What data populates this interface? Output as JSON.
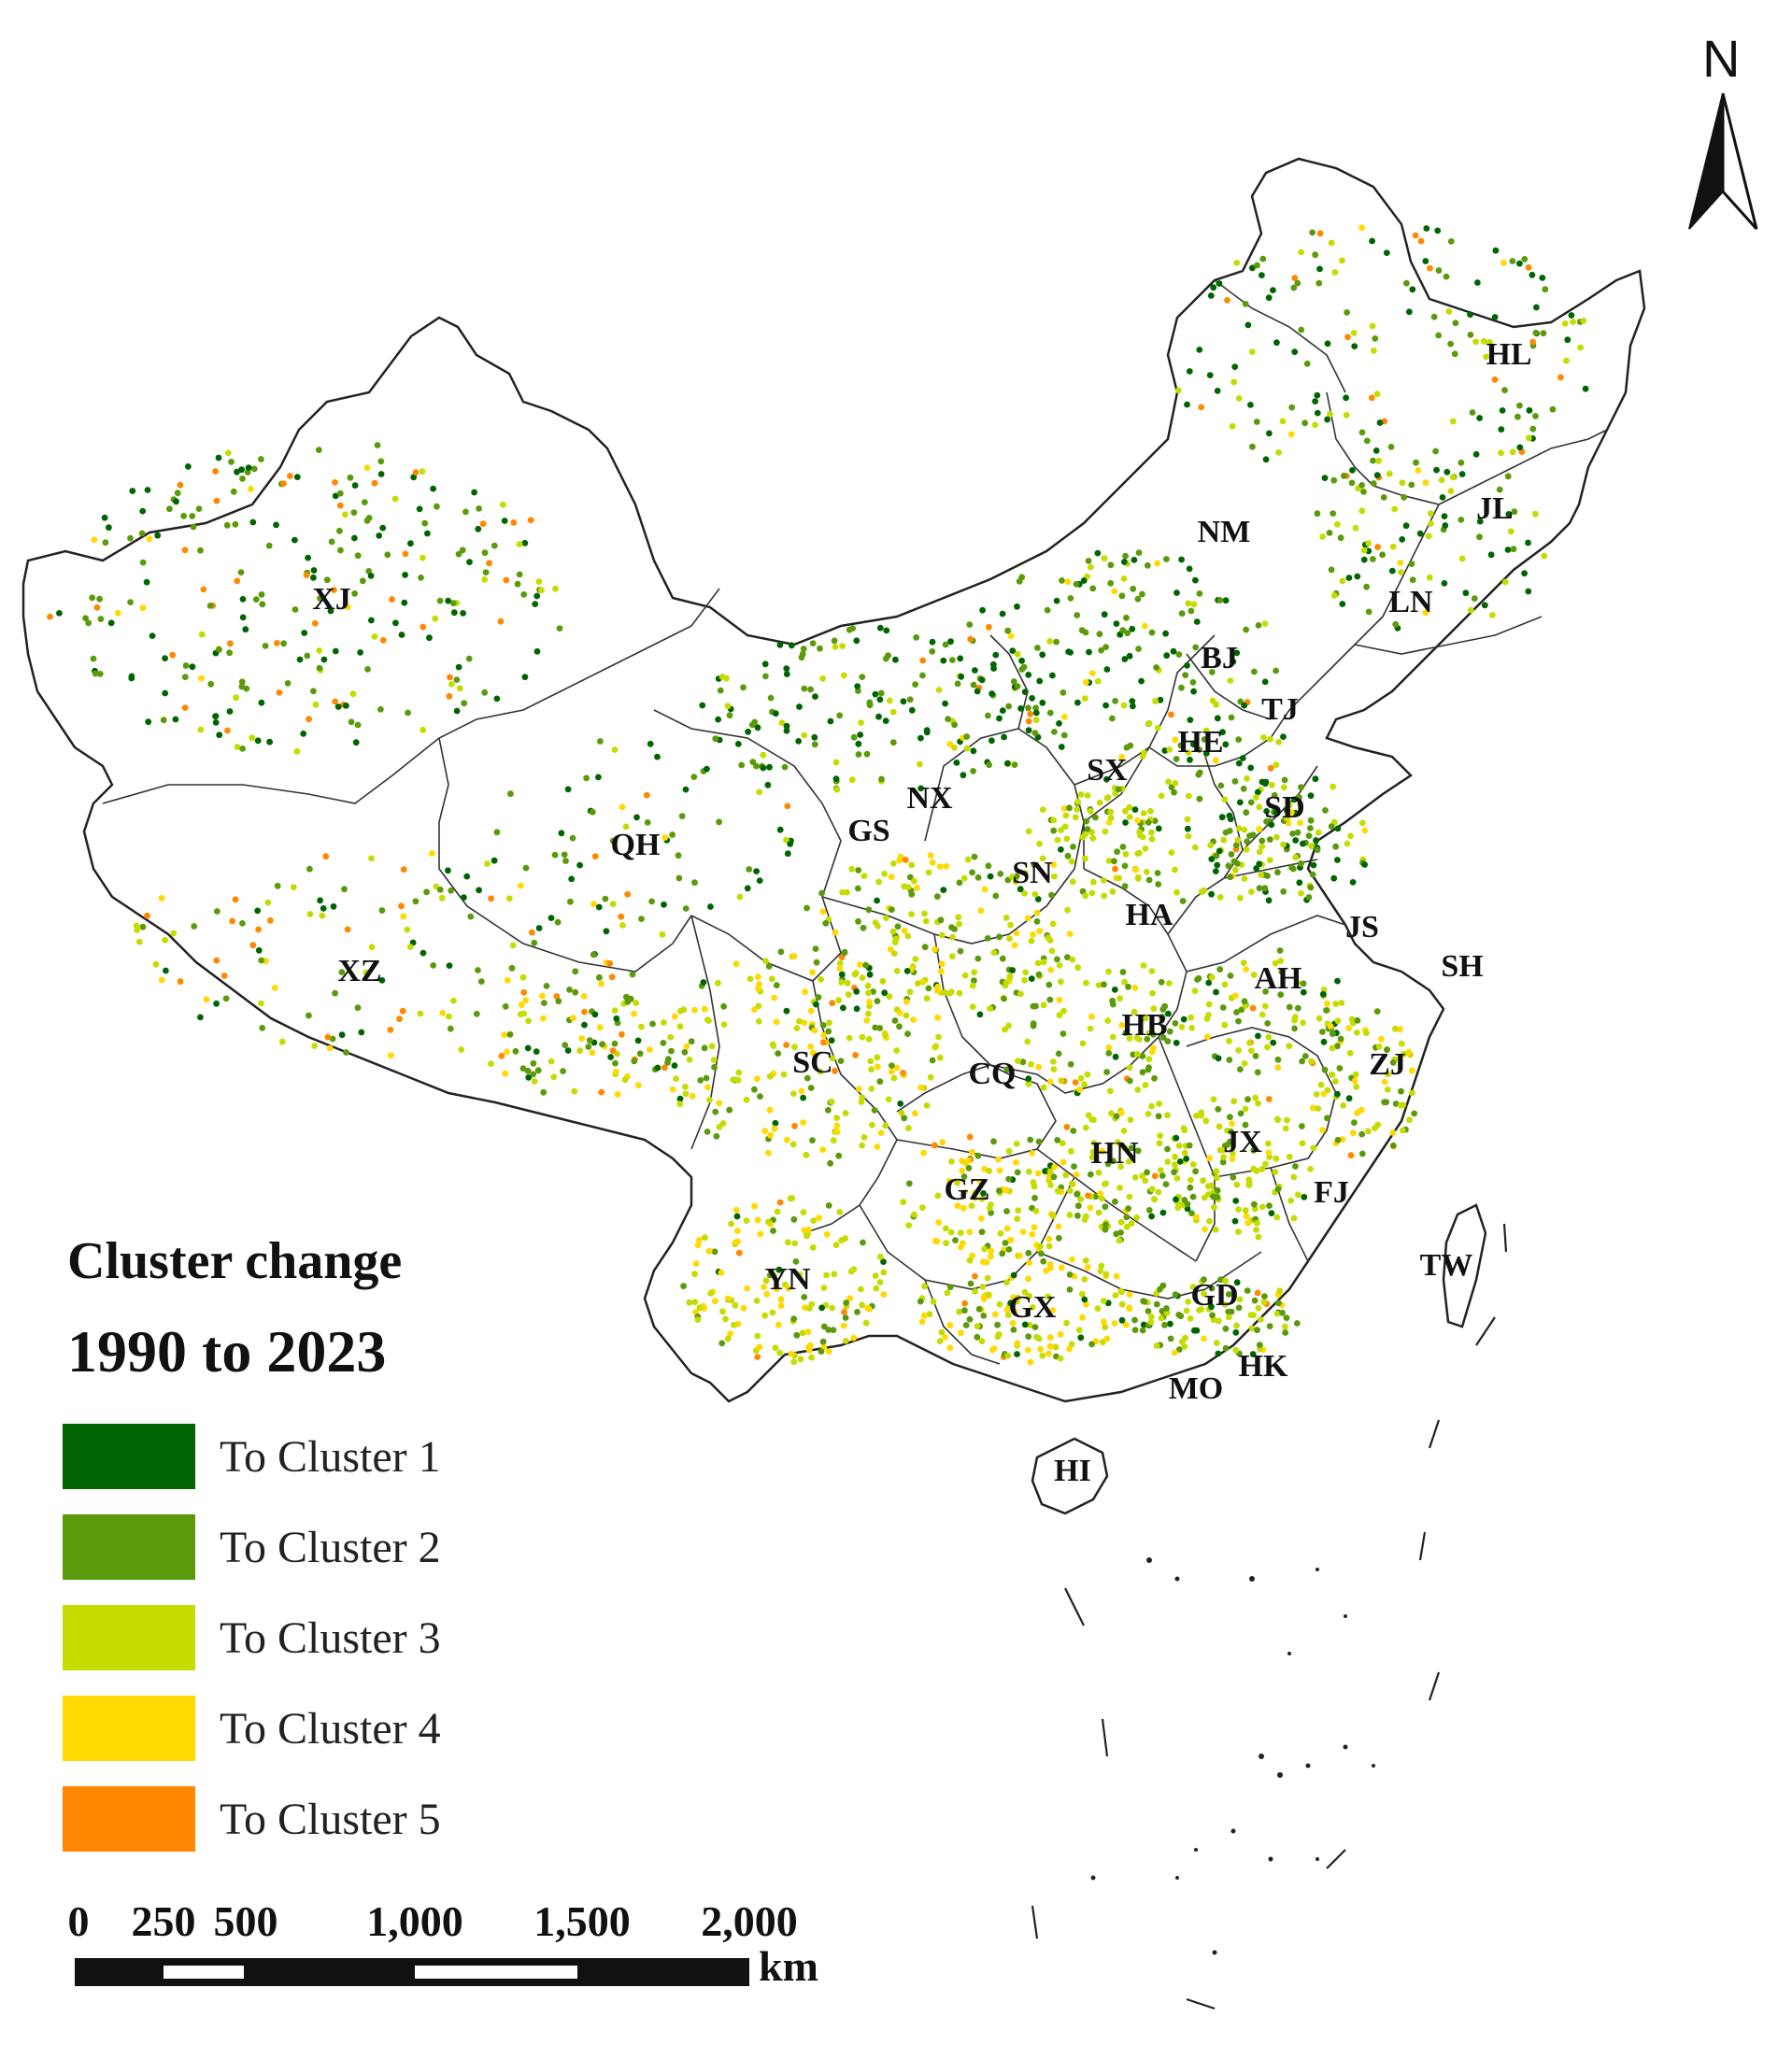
{
  "legend": {
    "title_line1": "Cluster change",
    "title_line2": "1990 to 2023",
    "items": [
      {
        "label": "To Cluster 1",
        "color": "#006400"
      },
      {
        "label": "To Cluster 2",
        "color": "#5b9a0a"
      },
      {
        "label": "To Cluster 3",
        "color": "#c5dc00"
      },
      {
        "label": "To Cluster 4",
        "color": "#ffd900"
      },
      {
        "label": "To Cluster 5",
        "color": "#ff8800"
      }
    ]
  },
  "scale_bar": {
    "ticks": [
      "0",
      "250",
      "500",
      "1,000",
      "1,500",
      "2,000"
    ],
    "unit": "km"
  },
  "north_arrow": {
    "label": "N"
  },
  "provinces": [
    {
      "code": "XJ"
    },
    {
      "code": "XZ"
    },
    {
      "code": "QH"
    },
    {
      "code": "GS"
    },
    {
      "code": "NX"
    },
    {
      "code": "NM"
    },
    {
      "code": "HL"
    },
    {
      "code": "JL"
    },
    {
      "code": "LN"
    },
    {
      "code": "BJ"
    },
    {
      "code": "TJ"
    },
    {
      "code": "HE"
    },
    {
      "code": "SX"
    },
    {
      "code": "SD"
    },
    {
      "code": "SN"
    },
    {
      "code": "HA"
    },
    {
      "code": "JS"
    },
    {
      "code": "SH"
    },
    {
      "code": "AH"
    },
    {
      "code": "HB"
    },
    {
      "code": "ZJ"
    },
    {
      "code": "SC"
    },
    {
      "code": "CQ"
    },
    {
      "code": "HN"
    },
    {
      "code": "JX"
    },
    {
      "code": "FJ"
    },
    {
      "code": "GZ"
    },
    {
      "code": "YN"
    },
    {
      "code": "GX"
    },
    {
      "code": "GD"
    },
    {
      "code": "TW"
    },
    {
      "code": "HK"
    },
    {
      "code": "MO"
    },
    {
      "code": "HI"
    }
  ]
}
